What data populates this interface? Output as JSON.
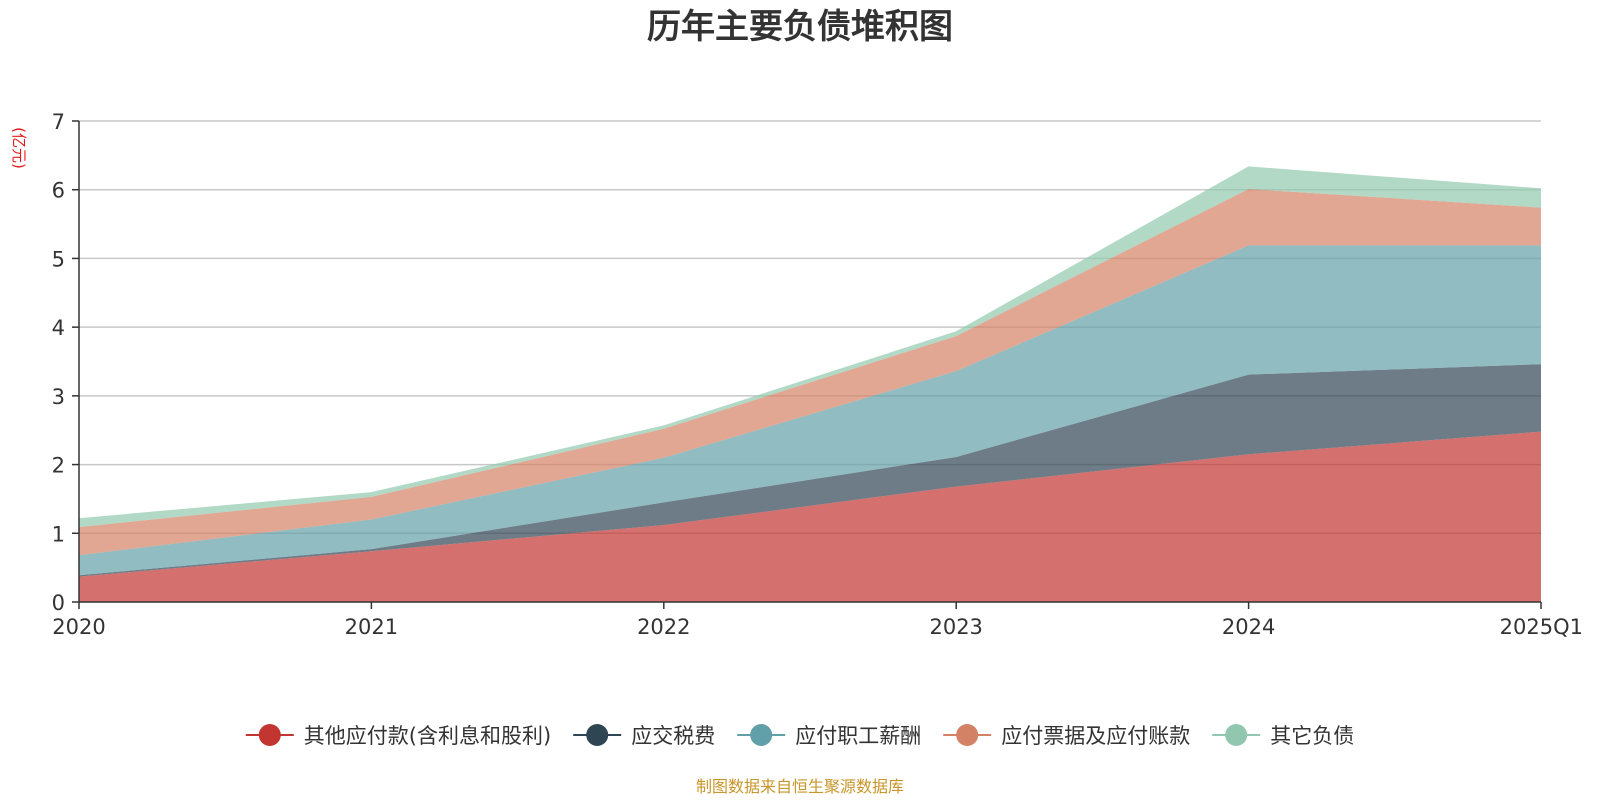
{
  "chart_data": {
    "type": "area",
    "stacked": true,
    "title": "历年主要负债堆积图",
    "unit": "(亿元)",
    "categories": [
      "2020",
      "2021",
      "2022",
      "2023",
      "2024",
      "2025Q1"
    ],
    "ylim": [
      0,
      7
    ],
    "yticks": [
      "0",
      "1",
      "2",
      "3",
      "4",
      "5",
      "6",
      "7"
    ],
    "grid": true,
    "legend_position": "bottom",
    "series": [
      {
        "name": "其他应付款(含利息和股利)",
        "color": "#c23531",
        "values": [
          0.37,
          0.74,
          1.12,
          1.68,
          2.15,
          2.48
        ]
      },
      {
        "name": "应交税费",
        "color": "#2f4554",
        "values": [
          0.02,
          0.03,
          0.33,
          0.43,
          1.16,
          0.98
        ]
      },
      {
        "name": "应付职工薪酬",
        "color": "#61a0a8",
        "values": [
          0.29,
          0.43,
          0.65,
          1.25,
          1.88,
          1.73
        ]
      },
      {
        "name": "应付票据及应付账款",
        "color": "#d48265",
        "values": [
          0.41,
          0.33,
          0.42,
          0.51,
          0.82,
          0.55
        ]
      },
      {
        "name": "其它负债",
        "color": "#91c7ae",
        "values": [
          0.13,
          0.07,
          0.05,
          0.07,
          0.33,
          0.28
        ]
      }
    ],
    "source": "制图数据来自恒生聚源数据库"
  }
}
